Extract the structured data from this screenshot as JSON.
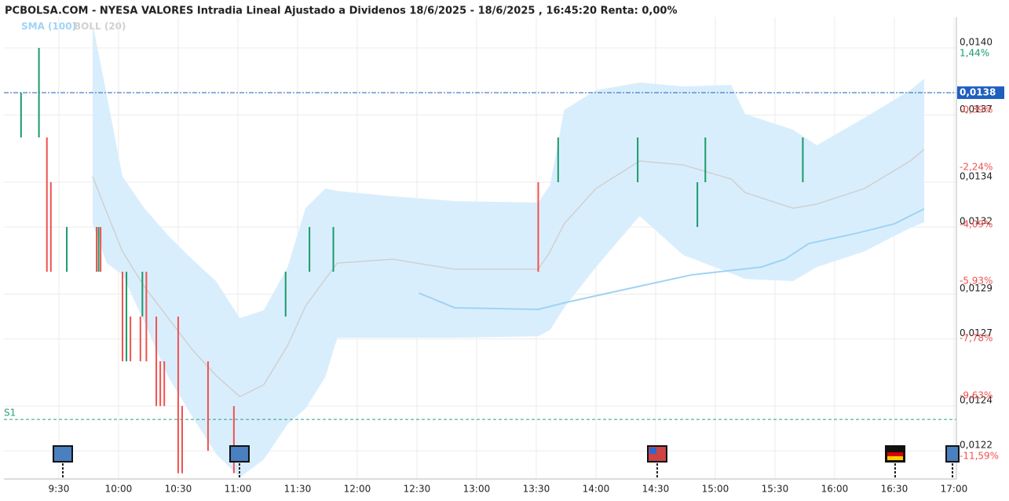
{
  "chart_data": {
    "type": "candlestick",
    "title": "PCBOLSA.COM - NYESA VALORES Intradia Lineal Ajustado a Dividenos 18/6/2025 - 18/6/2025 , 16:45:20 Renta: 0,00%",
    "x": [
      551,
      560,
      564,
      566,
      574,
      589,
      590,
      591,
      602,
      604,
      606,
      611,
      612,
      614,
      619,
      621,
      623,
      630,
      632,
      645,
      658,
      684,
      696,
      708,
      811,
      821,
      861,
      891,
      895,
      944
    ],
    "open": [
      0.0136,
      0.0136,
      0.0136,
      0.0134,
      0.013,
      0.0132,
      0.013,
      0.0132,
      0.013,
      0.0126,
      0.0128,
      0.0128,
      0.0128,
      0.013,
      0.0128,
      0.0126,
      0.0126,
      0.0128,
      0.0124,
      0.0126,
      0.0124,
      0.0128,
      0.013,
      0.013,
      0.0134,
      0.0134,
      0.0134,
      0.0132,
      0.0134,
      0.0134
    ],
    "close": [
      0.0138,
      0.014,
      0.013,
      0.013,
      0.0132,
      0.013,
      0.0132,
      0.013,
      0.0126,
      0.013,
      0.0126,
      0.0126,
      0.013,
      0.0126,
      0.0124,
      0.0124,
      0.0124,
      0.0121,
      0.0121,
      0.0122,
      0.0121,
      0.013,
      0.0132,
      0.0132,
      0.013,
      0.0136,
      0.0136,
      0.0134,
      0.0136,
      0.0136
    ],
    "up_color": "#1a9a6c",
    "down_color": "#f0524f",
    "bollinger": {
      "name": "BOLL (20)",
      "color": "#d0d0d0",
      "fill": "#d9eefc",
      "x": [
        587,
        594,
        602,
        613,
        625,
        637,
        649,
        661,
        673,
        685,
        694,
        704,
        710,
        738,
        769,
        811,
        817,
        824,
        840,
        862,
        884,
        908,
        915,
        939,
        951,
        975,
        998,
        1005
      ],
      "upper": [
        0.014109,
        0.013793,
        0.013425,
        0.013284,
        0.013161,
        0.013056,
        0.012958,
        0.012793,
        0.012828,
        0.013021,
        0.013284,
        0.013372,
        0.013361,
        0.013337,
        0.013316,
        0.013309,
        0.013389,
        0.013723,
        0.013811,
        0.013846,
        0.013828,
        0.013835,
        0.013705,
        0.013635,
        0.013565,
        0.013688,
        0.013811,
        0.013863
      ],
      "middle": [
        0.013425,
        0.013267,
        0.013091,
        0.012933,
        0.012793,
        0.012653,
        0.012537,
        0.012442,
        0.012495,
        0.01267,
        0.012846,
        0.012968,
        0.013039,
        0.013056,
        0.013011,
        0.013011,
        0.013091,
        0.013214,
        0.013372,
        0.013495,
        0.013477,
        0.013414,
        0.013354,
        0.013284,
        0.013302,
        0.013372,
        0.013495,
        0.013547
      ],
      "lower": [
        0.013214,
        0.013039,
        0.012986,
        0.012775,
        0.01253,
        0.012354,
        0.012186,
        0.012081,
        0.012161,
        0.012319,
        0.012389,
        0.01253,
        0.012705,
        0.012705,
        0.012705,
        0.012712,
        0.01274,
        0.012839,
        0.013021,
        0.013249,
        0.013074,
        0.012993,
        0.012968,
        0.012958,
        0.013021,
        0.013091,
        0.013196,
        0.013221
      ]
    },
    "sma": {
      "name": "SMA (100)",
      "color": "#9fd3f5",
      "x": [
        751,
        769,
        811,
        825,
        852,
        888,
        923,
        935,
        947,
        971,
        990,
        1005
      ],
      "values": [
        0.012905,
        0.012839,
        0.012832,
        0.012863,
        0.012916,
        0.012986,
        0.013021,
        0.013056,
        0.013126,
        0.013172,
        0.013214,
        0.013281
      ]
    },
    "last_price": {
      "value": 0.0138,
      "label": "0,0138",
      "color": "#1f5fbf"
    },
    "support": {
      "label": "S1",
      "value": 0.01234,
      "color": "#2aa07a"
    },
    "xlim": [
      542.4,
      1021.2
    ],
    "xticks": [
      {
        "value": 570,
        "label": "9:30"
      },
      {
        "value": 600,
        "label": "10:00"
      },
      {
        "value": 630,
        "label": "10:30"
      },
      {
        "value": 660,
        "label": "11:00"
      },
      {
        "value": 690,
        "label": "11:30"
      },
      {
        "value": 720,
        "label": "12:00"
      },
      {
        "value": 750,
        "label": "12:30"
      },
      {
        "value": 780,
        "label": "13:00"
      },
      {
        "value": 810,
        "label": "13:30"
      },
      {
        "value": 840,
        "label": "14:00"
      },
      {
        "value": 870,
        "label": "14:30"
      },
      {
        "value": 900,
        "label": "15:00"
      },
      {
        "value": 930,
        "label": "15:30"
      },
      {
        "value": 960,
        "label": "16:00"
      },
      {
        "value": 990,
        "label": "16:30"
      },
      {
        "value": 1020,
        "label": "17:00"
      }
    ],
    "ylim": [
      0.012074,
      0.014137
    ],
    "yticks": [
      {
        "value": 0.014,
        "label": "0,0140"
      },
      {
        "value": 0.0137,
        "label": "0,0137"
      },
      {
        "value": 0.0134,
        "label": "0,0134"
      },
      {
        "value": 0.0132,
        "label": "0,0132"
      },
      {
        "value": 0.0129,
        "label": "0,0129"
      },
      {
        "value": 0.0127,
        "label": "0,0127"
      },
      {
        "value": 0.0124,
        "label": "0,0124"
      },
      {
        "value": 0.0122,
        "label": "0,0122"
      }
    ],
    "y2lim": [
      -12.5,
      2.43
    ],
    "y2ticks": [
      {
        "value": 1.44,
        "label": "1,44%"
      },
      {
        "value": -0.39,
        "label": "-0,39%"
      },
      {
        "value": -2.24,
        "label": "-2,24%"
      },
      {
        "value": -4.09,
        "label": "-4,09%"
      },
      {
        "value": -5.93,
        "label": "-5,93%"
      },
      {
        "value": -7.78,
        "label": "-7,78%"
      },
      {
        "value": -9.63,
        "label": "-9,63%"
      },
      {
        "value": -11.59,
        "label": "-11,59%"
      }
    ],
    "grid": true
  }
}
